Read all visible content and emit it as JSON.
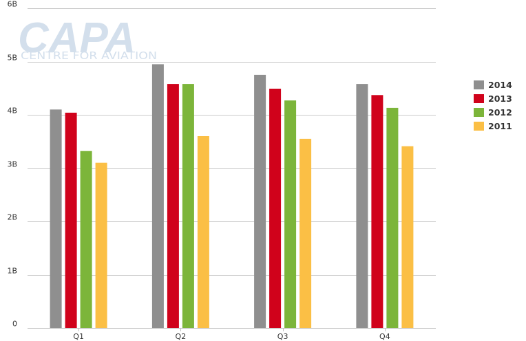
{
  "watermark": {
    "title": "CAPA",
    "subtitle": "CENTRE FOR AVIATION"
  },
  "colors": {
    "grid": "#c9c9c9",
    "axis": "#c0c0c0",
    "text": "#333333",
    "watermark": "#d3dfec"
  },
  "chart_data": {
    "type": "bar",
    "categories": [
      "Q1",
      "Q2",
      "Q3",
      "Q4"
    ],
    "series": [
      {
        "name": "2014",
        "color": "#8f8f8f",
        "values": [
          4.1,
          4.95,
          4.75,
          4.58
        ]
      },
      {
        "name": "2013",
        "color": "#d0021b",
        "values": [
          4.04,
          4.58,
          4.49,
          4.37
        ]
      },
      {
        "name": "2012",
        "color": "#7cb53a",
        "values": [
          3.32,
          4.58,
          4.27,
          4.13
        ]
      },
      {
        "name": "2011",
        "color": "#fbbf45",
        "values": [
          3.1,
          3.6,
          3.55,
          3.41
        ]
      }
    ],
    "y_ticks": [
      "0",
      "1B",
      "2B",
      "3B",
      "4B",
      "5B",
      "6B"
    ],
    "ylim": [
      0,
      6
    ],
    "grid": true,
    "legend_position": "right",
    "title": "",
    "xlabel": "",
    "ylabel": ""
  }
}
